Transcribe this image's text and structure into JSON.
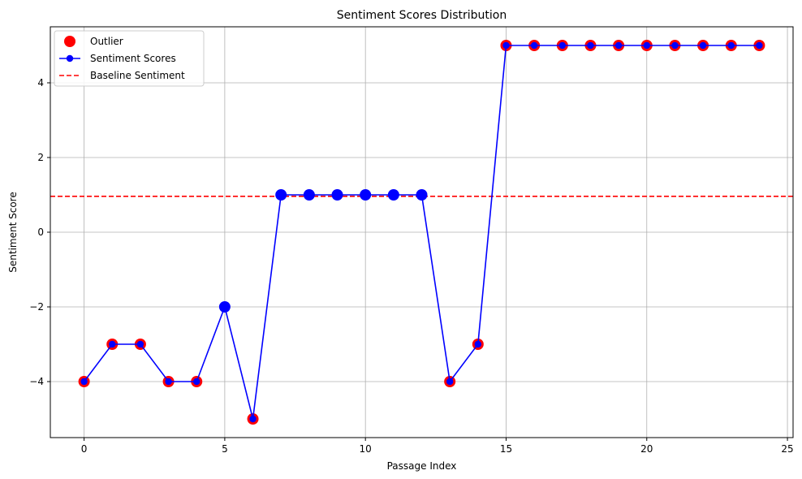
{
  "chart_data": {
    "type": "line",
    "title": "Sentiment Scores Distribution",
    "xlabel": "Passage Index",
    "ylabel": "Sentiment Score",
    "xlim": [
      -1.2,
      25.2
    ],
    "ylim": [
      -5.5,
      5.5
    ],
    "xticks": [
      0,
      5,
      10,
      15,
      20,
      25
    ],
    "yticks": [
      -4,
      -2,
      0,
      2,
      4
    ],
    "grid": true,
    "legend_position": "top-left",
    "x": [
      0,
      1,
      2,
      3,
      4,
      5,
      6,
      7,
      8,
      9,
      10,
      11,
      12,
      13,
      14,
      15,
      16,
      17,
      18,
      19,
      20,
      21,
      22,
      23,
      24
    ],
    "series": [
      {
        "name": "Sentiment Scores",
        "kind": "line-marker",
        "color": "#0000ff",
        "values": [
          -4,
          -3,
          -3,
          -4,
          -4,
          -2,
          -5,
          1,
          1,
          1,
          1,
          1,
          1,
          -4,
          -3,
          5,
          5,
          5,
          5,
          5,
          5,
          5,
          5,
          5,
          5
        ]
      }
    ],
    "outliers": {
      "name": "Outlier",
      "color": "#ff0000",
      "x": [
        0,
        1,
        2,
        3,
        4,
        6,
        13,
        14,
        15,
        16,
        17,
        18,
        19,
        20,
        21,
        22,
        23,
        24
      ],
      "y": [
        -4,
        -3,
        -3,
        -4,
        -4,
        -5,
        -4,
        -3,
        5,
        5,
        5,
        5,
        5,
        5,
        5,
        5,
        5,
        5
      ]
    },
    "baseline": {
      "name": "Baseline Sentiment",
      "color": "#ff0000",
      "style": "dashed",
      "value": 0.96
    },
    "highlight_color": "#0000ff",
    "legend_order": [
      "Outlier",
      "Sentiment Scores",
      "Baseline Sentiment"
    ]
  }
}
